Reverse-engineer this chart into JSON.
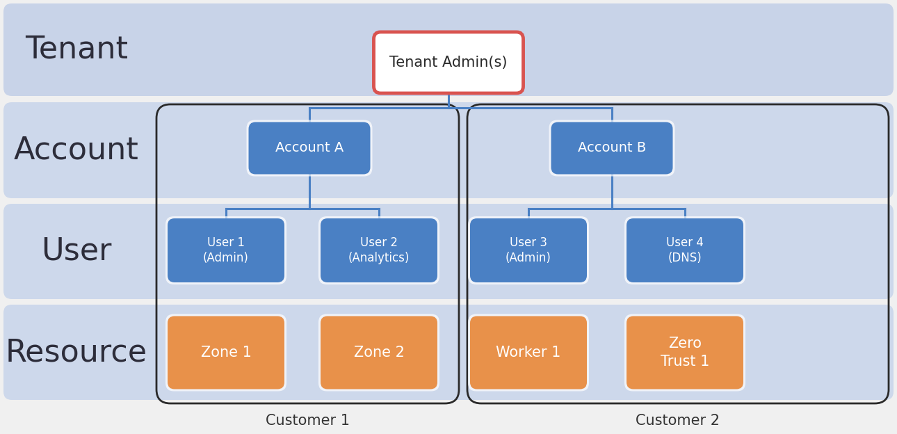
{
  "bg_color": "#f0f0f0",
  "row_bg_color": "#dce3f0",
  "row_colors": [
    "#c8d3e8",
    "#cdd8eb",
    "#cdd8eb",
    "#cdd8eb"
  ],
  "row_labels": [
    "Tenant",
    "Account",
    "User",
    "Resource"
  ],
  "row_label_color": "#2d2d3a",
  "blue_box_color": "#4a80c4",
  "blue_box_border": "#ffffff",
  "orange_box_color": "#e8914a",
  "orange_box_border": "#ffffff",
  "tenant_admin_box_color": "#ffffff",
  "tenant_admin_border_color": "#d9534f",
  "white_text": "#ffffff",
  "dark_text": "#2a2a2a",
  "line_color": "#4a80c4",
  "customer_label_color": "#333333",
  "tenant_admin_label": "Tenant Admin(s)",
  "account_a_label": "Account A",
  "account_b_label": "Account B",
  "user_labels": [
    "User 1\n(Admin)",
    "User 2\n(Analytics)",
    "User 3\n(Admin)",
    "User 4\n(DNS)"
  ],
  "resource_labels": [
    "Zone 1",
    "Zone 2",
    "Worker 1",
    "Zero\nTrust 1"
  ],
  "customer1_label": "Customer 1",
  "customer2_label": "Customer 2"
}
